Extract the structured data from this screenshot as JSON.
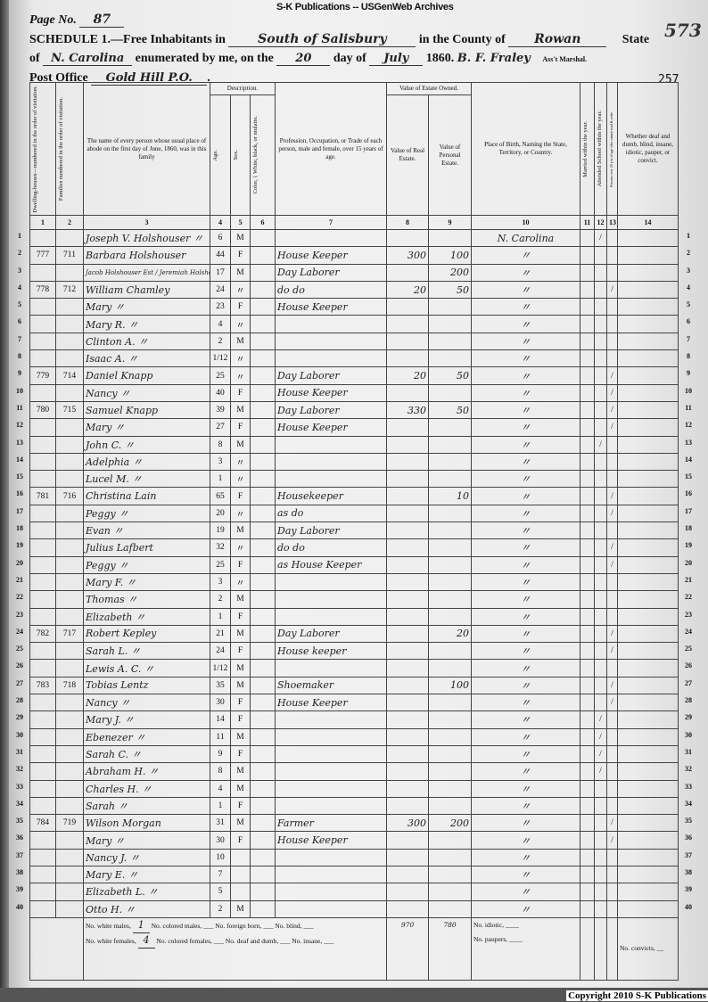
{
  "banner": "S-K Publications -- USGenWeb Archives",
  "copyright": "Copyright 2010 S-K Publications",
  "header": {
    "page_label": "Page No.",
    "page_no": "87",
    "folio": "573",
    "schedule": "SCHEDULE 1.—Free Inhabitants in",
    "place": "South of Salisbury",
    "county_label": "in the County of",
    "county": "Rowan",
    "state_label": "State",
    "of_label": "of",
    "state": "N. Carolina",
    "enumerated_label": "enumerated by me, on the",
    "day": "20",
    "day_label": "day of",
    "month": "July",
    "year": "1860.",
    "marshal": "B. F. Fraley",
    "marshal_label": "Ass't Marshal.",
    "po_label": "Post Office",
    "post_office": "Gold Hill P.O.",
    "sheet_no": "257"
  },
  "columns": {
    "c1": "Dwelling-houses—numbered in the order of visitation.",
    "c2": "Families numbered in the order of visitation.",
    "c3": "The name of every person whose usual place of abode on the first day of June, 1860, was in this family",
    "desc": "Description.",
    "c4": "Age.",
    "c5": "Sex.",
    "c6": "Color, { White, black, or mulatto.",
    "c7": "Profession, Occupation, or Trade of each person, male and female, over 15 years of age.",
    "estate": "Value of Estate Owned.",
    "c8": "Value of Real Estate.",
    "c9": "Value of Personal Estate.",
    "c10": "Place of Birth, Naming the State, Territory, or Country.",
    "c11": "Married within the year.",
    "c12": "Attended School within the year.",
    "c13": "Persons over 20 y'rs of age who cannot read & write.",
    "c14": "Whether deaf and dumb, blind, insane, idiotic, pauper, or convict.",
    "numbers": [
      "1",
      "2",
      "3",
      "4",
      "5",
      "6",
      "7",
      "8",
      "9",
      "10",
      "11",
      "12",
      "13",
      "14"
    ]
  },
  "rows": [
    [
      "",
      "",
      "Joseph V. Holshouser 〃",
      "6",
      "M",
      "",
      "",
      "",
      "",
      "N. Carolina",
      "",
      "/",
      "",
      ""
    ],
    [
      "777",
      "711",
      "Barbara Holshouser",
      "44",
      "F",
      "",
      "House Keeper",
      "300",
      "100",
      "〃",
      "",
      "",
      "",
      ""
    ],
    [
      "",
      "",
      "Jacob Holshouser Est / Jeremiah Holshouser",
      "17",
      "M",
      "",
      "Day Laborer",
      "",
      "200",
      "〃",
      "",
      "",
      "",
      ""
    ],
    [
      "778",
      "712",
      "William Chamley",
      "24",
      "〃",
      "",
      "do do",
      "20",
      "50",
      "〃",
      "",
      "",
      "/",
      ""
    ],
    [
      "",
      "",
      "Mary 〃",
      "23",
      "F",
      "",
      "House Keeper",
      "",
      "",
      "〃",
      "",
      "",
      "",
      ""
    ],
    [
      "",
      "",
      "Mary R. 〃",
      "4",
      "〃",
      "",
      "",
      "",
      "",
      "〃",
      "",
      "",
      "",
      ""
    ],
    [
      "",
      "",
      "Clinton A. 〃",
      "2",
      "M",
      "",
      "",
      "",
      "",
      "〃",
      "",
      "",
      "",
      ""
    ],
    [
      "",
      "",
      "Isaac A. 〃",
      "1/12",
      "〃",
      "",
      "",
      "",
      "",
      "〃",
      "",
      "",
      "",
      ""
    ],
    [
      "779",
      "714",
      "Daniel Knapp",
      "25",
      "〃",
      "",
      "Day Laborer",
      "20",
      "50",
      "〃",
      "",
      "",
      "/",
      ""
    ],
    [
      "",
      "",
      "Nancy 〃",
      "40",
      "F",
      "",
      "House Keeper",
      "",
      "",
      "〃",
      "",
      "",
      "/",
      ""
    ],
    [
      "780",
      "715",
      "Samuel Knapp",
      "39",
      "M",
      "",
      "Day Laborer",
      "330",
      "50",
      "〃",
      "",
      "",
      "/",
      ""
    ],
    [
      "",
      "",
      "Mary 〃",
      "27",
      "F",
      "",
      "House Keeper",
      "",
      "",
      "〃",
      "",
      "",
      "/",
      ""
    ],
    [
      "",
      "",
      "John C. 〃",
      "8",
      "M",
      "",
      "",
      "",
      "",
      "〃",
      "",
      "/",
      "",
      ""
    ],
    [
      "",
      "",
      "Adelphia 〃",
      "3",
      "〃",
      "",
      "",
      "",
      "",
      "〃",
      "",
      "",
      "",
      ""
    ],
    [
      "",
      "",
      "Lucel M. 〃",
      "1",
      "〃",
      "",
      "",
      "",
      "",
      "〃",
      "",
      "",
      "",
      ""
    ],
    [
      "781",
      "716",
      "Christina Lain",
      "65",
      "F",
      "",
      "Housekeeper",
      "",
      "10",
      "〃",
      "",
      "",
      "/",
      ""
    ],
    [
      "",
      "",
      "Peggy 〃",
      "20",
      "〃",
      "",
      "as do",
      "",
      "",
      "〃",
      "",
      "",
      "/",
      ""
    ],
    [
      "",
      "",
      "Evan 〃",
      "19",
      "M",
      "",
      "Day Laborer",
      "",
      "",
      "〃",
      "",
      "",
      "",
      ""
    ],
    [
      "",
      "",
      "Julius Lafbert",
      "32",
      "〃",
      "",
      "do do",
      "",
      "",
      "〃",
      "",
      "",
      "/",
      ""
    ],
    [
      "",
      "",
      "Peggy 〃",
      "25",
      "F",
      "",
      "as House Keeper",
      "",
      "",
      "〃",
      "",
      "",
      "/",
      ""
    ],
    [
      "",
      "",
      "Mary F. 〃",
      "3",
      "〃",
      "",
      "",
      "",
      "",
      "〃",
      "",
      "",
      "",
      ""
    ],
    [
      "",
      "",
      "Thomas 〃",
      "2",
      "M",
      "",
      "",
      "",
      "",
      "〃",
      "",
      "",
      "",
      ""
    ],
    [
      "",
      "",
      "Elizabeth 〃",
      "1",
      "F",
      "",
      "",
      "",
      "",
      "〃",
      "",
      "",
      "",
      ""
    ],
    [
      "782",
      "717",
      "Robert Kepley",
      "21",
      "M",
      "",
      "Day Laborer",
      "",
      "20",
      "〃",
      "",
      "",
      "/",
      ""
    ],
    [
      "",
      "",
      "Sarah L. 〃",
      "24",
      "F",
      "",
      "House keeper",
      "",
      "",
      "〃",
      "",
      "",
      "/",
      ""
    ],
    [
      "",
      "",
      "Lewis A. C. 〃",
      "1/12",
      "M",
      "",
      "",
      "",
      "",
      "〃",
      "",
      "",
      "",
      ""
    ],
    [
      "783",
      "718",
      "Tobias Lentz",
      "35",
      "M",
      "",
      "Shoemaker",
      "",
      "100",
      "〃",
      "",
      "",
      "/",
      ""
    ],
    [
      "",
      "",
      "Nancy 〃",
      "30",
      "F",
      "",
      "House Keeper",
      "",
      "",
      "〃",
      "",
      "",
      "/",
      ""
    ],
    [
      "",
      "",
      "Mary J. 〃",
      "14",
      "F",
      "",
      "",
      "",
      "",
      "〃",
      "",
      "/",
      "",
      ""
    ],
    [
      "",
      "",
      "Ebenezer 〃",
      "11",
      "M",
      "",
      "",
      "",
      "",
      "〃",
      "",
      "/",
      "",
      ""
    ],
    [
      "",
      "",
      "Sarah C. 〃",
      "9",
      "F",
      "",
      "",
      "",
      "",
      "〃",
      "",
      "/",
      "",
      ""
    ],
    [
      "",
      "",
      "Abraham H. 〃",
      "8",
      "M",
      "",
      "",
      "",
      "",
      "〃",
      "",
      "/",
      "",
      ""
    ],
    [
      "",
      "",
      "Charles H. 〃",
      "4",
      "M",
      "",
      "",
      "",
      "",
      "〃",
      "",
      "",
      "",
      ""
    ],
    [
      "",
      "",
      "Sarah 〃",
      "1",
      "F",
      "",
      "",
      "",
      "",
      "〃",
      "",
      "",
      "",
      ""
    ],
    [
      "784",
      "719",
      "Wilson Morgan",
      "31",
      "M",
      "",
      "Farmer",
      "300",
      "200",
      "〃",
      "",
      "",
      "/",
      ""
    ],
    [
      "",
      "",
      "Mary 〃",
      "30",
      "F",
      "",
      "House Keeper",
      "",
      "",
      "〃",
      "",
      "",
      "/",
      ""
    ],
    [
      "",
      "",
      "Nancy J. 〃",
      "10",
      "",
      "",
      "",
      "",
      "",
      "〃",
      "",
      "",
      "",
      ""
    ],
    [
      "",
      "",
      "Mary E. 〃",
      "7",
      "",
      "",
      "",
      "",
      "",
      "〃",
      "",
      "",
      "",
      ""
    ],
    [
      "",
      "",
      "Elizabeth L. 〃",
      "5",
      "",
      "",
      "",
      "",
      "",
      "〃",
      "",
      "",
      "",
      ""
    ],
    [
      "",
      "",
      "Otto H. 〃",
      "2",
      "M",
      "",
      "",
      "",
      "",
      "〃",
      "",
      "",
      "",
      ""
    ]
  ],
  "summary": {
    "white_males_label": "No. white males,",
    "white_males": "1",
    "colored_males_label": "No. colored males,",
    "foreign_label": "No. foreign born,",
    "blind_label": "No. blind,",
    "white_females_label": "No. white females,",
    "white_females": "4",
    "colored_females_label": "No. colored females,",
    "deaf_label": "No. deaf and dumb,",
    "insane_label": "No. insane,",
    "real_total": "970",
    "personal_total": "780",
    "idiotic_label": "No. idiotic,",
    "paupers_label": "No. paupers,",
    "convicts_label": "No. convicts,"
  }
}
